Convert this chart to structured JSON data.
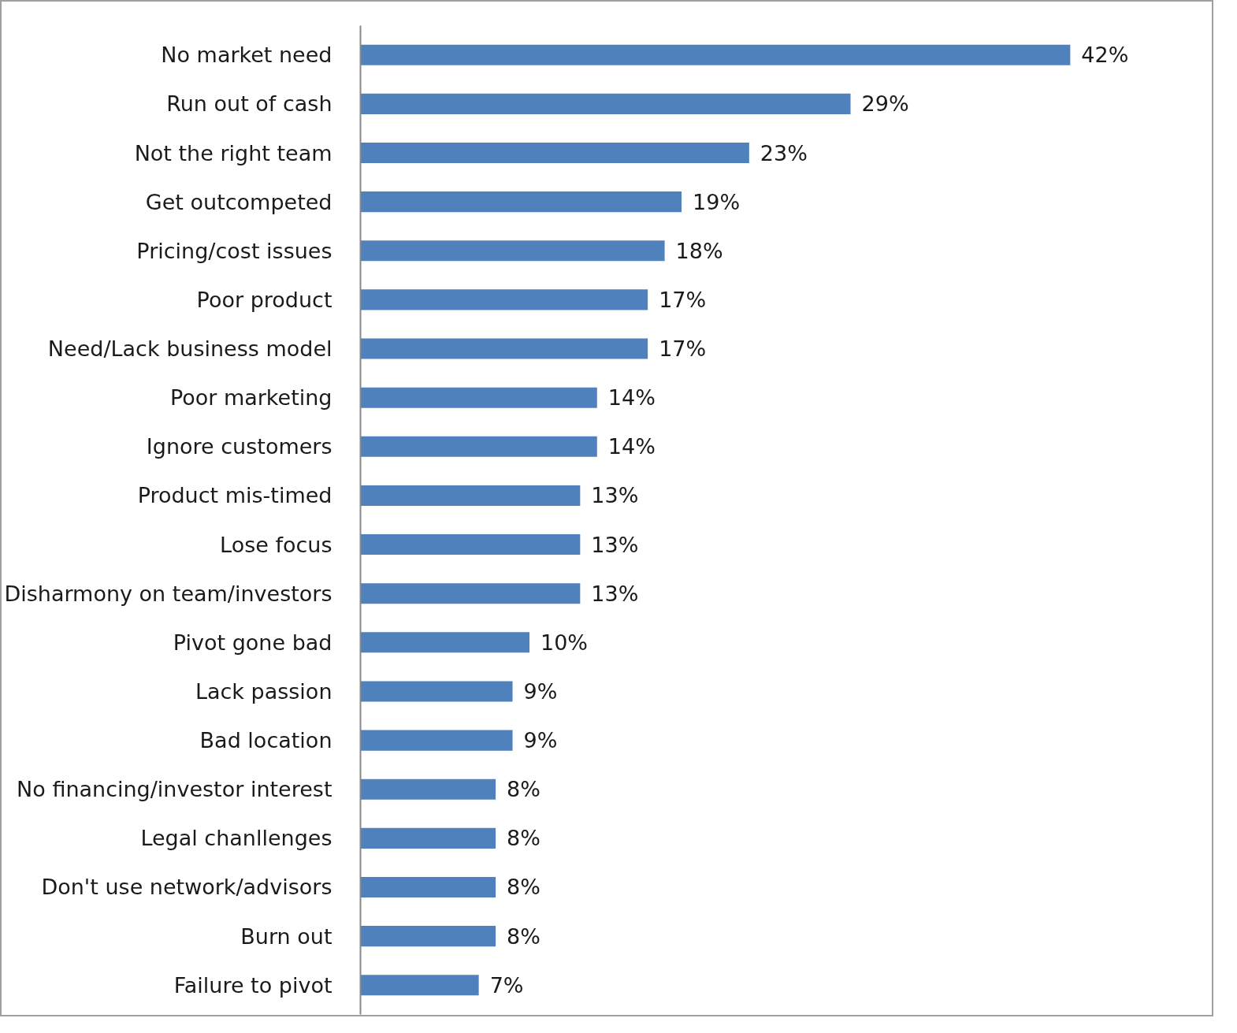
{
  "chart_data": {
    "type": "bar",
    "orientation": "horizontal",
    "categories": [
      "No market need",
      "Run out of cash",
      "Not the right team",
      "Get outcompeted",
      "Pricing/cost issues",
      "Poor product",
      "Need/Lack business model",
      "Poor marketing",
      "Ignore customers",
      "Product mis-timed",
      "Lose focus",
      "Disharmony on team/investors",
      "Pivot gone bad",
      "Lack passion",
      "Bad location",
      "No financing/investor interest",
      "Legal chanllenges",
      "Don't use network/advisors",
      "Burn out",
      "Failure to pivot"
    ],
    "values": [
      42,
      29,
      23,
      19,
      18,
      17,
      17,
      14,
      14,
      13,
      13,
      13,
      10,
      9,
      9,
      8,
      8,
      8,
      8,
      7
    ],
    "value_labels": [
      "42%",
      "29%",
      "23%",
      "19%",
      "18%",
      "17%",
      "17%",
      "14%",
      "14%",
      "13%",
      "13%",
      "13%",
      "10%",
      "9%",
      "9%",
      "8%",
      "8%",
      "8%",
      "8%",
      "7%"
    ],
    "color": "#4f81bd",
    "grid": false,
    "tick_labels": "y"
  }
}
